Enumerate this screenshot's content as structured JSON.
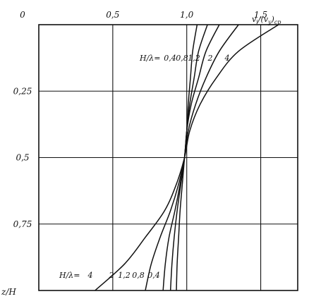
{
  "chart_data": {
    "type": "line",
    "title": "",
    "x_axis": {
      "label": "v_i/(v_y)cp",
      "label_parts": {
        "v": "v",
        "i": "i",
        "mid": "/(",
        "v2": "v",
        "y": "y",
        "close": ")",
        "sub": "cp"
      },
      "range": [
        0,
        1.75
      ],
      "ticks": [
        "0,5",
        "1,0",
        "1,5"
      ],
      "tick_values": [
        0.5,
        1.0,
        1.5
      ],
      "position": "top"
    },
    "y_axis": {
      "label": "z/H",
      "range": [
        0,
        1.0
      ],
      "inverted": true,
      "ticks": [
        "0",
        "0,25",
        "0,5",
        "0,75"
      ],
      "tick_values": [
        0,
        0.25,
        0.5,
        0.75
      ]
    },
    "grid": true,
    "series": [
      {
        "name": "0,4",
        "points": [
          [
            1.07,
            0
          ],
          [
            1.04,
            0.1
          ],
          [
            1.025,
            0.2
          ],
          [
            1.01,
            0.3
          ],
          [
            1.0,
            0.4
          ],
          [
            0.985,
            0.5
          ],
          [
            0.97,
            0.6
          ],
          [
            0.955,
            0.7
          ],
          [
            0.945,
            0.8
          ],
          [
            0.935,
            0.9
          ],
          [
            0.93,
            1.0
          ]
        ]
      },
      {
        "name": "0,8",
        "points": [
          [
            1.14,
            0
          ],
          [
            1.08,
            0.1
          ],
          [
            1.05,
            0.2
          ],
          [
            1.02,
            0.3
          ],
          [
            1.0,
            0.4
          ],
          [
            0.985,
            0.5
          ],
          [
            0.96,
            0.6
          ],
          [
            0.935,
            0.7
          ],
          [
            0.915,
            0.8
          ],
          [
            0.9,
            0.9
          ],
          [
            0.89,
            1.0
          ]
        ]
      },
      {
        "name": "1,2",
        "points": [
          [
            1.22,
            0
          ],
          [
            1.13,
            0.1
          ],
          [
            1.08,
            0.2
          ],
          [
            1.03,
            0.3
          ],
          [
            1.0,
            0.4
          ],
          [
            0.985,
            0.5
          ],
          [
            0.955,
            0.6
          ],
          [
            0.92,
            0.7
          ],
          [
            0.88,
            0.8
          ],
          [
            0.855,
            0.9
          ],
          [
            0.84,
            1.0
          ]
        ]
      },
      {
        "name": "2",
        "points": [
          [
            1.35,
            0
          ],
          [
            1.22,
            0.1
          ],
          [
            1.13,
            0.2
          ],
          [
            1.06,
            0.3
          ],
          [
            1.01,
            0.4
          ],
          [
            0.985,
            0.5
          ],
          [
            0.945,
            0.6
          ],
          [
            0.89,
            0.7
          ],
          [
            0.82,
            0.8
          ],
          [
            0.76,
            0.9
          ],
          [
            0.72,
            1.0
          ]
        ]
      },
      {
        "name": "4",
        "points": [
          [
            1.62,
            0
          ],
          [
            1.35,
            0.1
          ],
          [
            1.2,
            0.2
          ],
          [
            1.09,
            0.3
          ],
          [
            1.02,
            0.4
          ],
          [
            0.985,
            0.5
          ],
          [
            0.93,
            0.6
          ],
          [
            0.85,
            0.7
          ],
          [
            0.72,
            0.8
          ],
          [
            0.58,
            0.9
          ],
          [
            0.38,
            1.0
          ]
        ]
      }
    ],
    "annotations": {
      "top_prefix": "H/λ",
      "top_values": [
        "0,4",
        "0,8",
        "1,2",
        "2",
        "4"
      ],
      "bottom_prefix": "H/λ",
      "bottom_values": [
        "4",
        "2",
        "1,2",
        "0,8",
        "0,4"
      ],
      "legend_placement": "inline"
    },
    "colors": {
      "line": "#111111",
      "grid": "#111111",
      "background": "#ffffff"
    }
  }
}
